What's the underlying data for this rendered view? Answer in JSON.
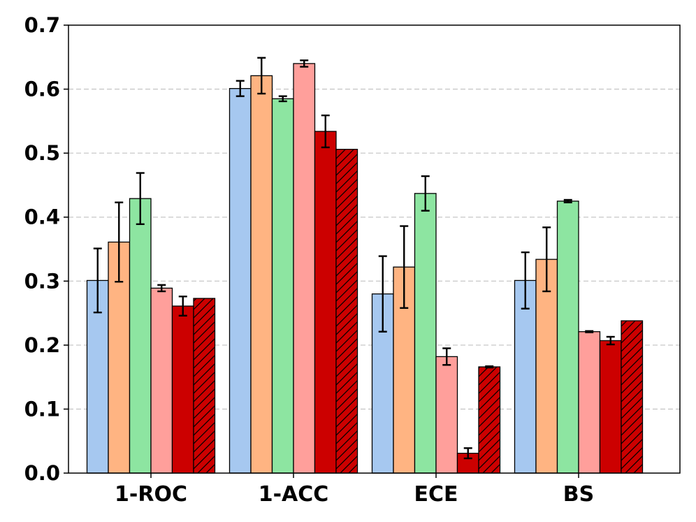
{
  "chart_data": {
    "type": "bar",
    "title": "",
    "xlabel": "",
    "ylabel": "",
    "ylim": [
      0,
      0.7
    ],
    "yticks": [
      "0.0",
      "0.1",
      "0.2",
      "0.3",
      "0.4",
      "0.5",
      "0.6",
      "0.7"
    ],
    "grid": "horizontal dashed",
    "categories": [
      "1-ROC",
      "1-ACC",
      "ECE",
      "BS"
    ],
    "series": [
      {
        "color": "#a6c8f0",
        "hatch": false,
        "values": [
          0.301,
          0.601,
          0.28,
          0.301
        ],
        "errors": [
          0.05,
          0.012,
          0.059,
          0.044
        ]
      },
      {
        "color": "#ffb482",
        "hatch": false,
        "values": [
          0.361,
          0.621,
          0.322,
          0.334
        ],
        "errors": [
          0.062,
          0.028,
          0.064,
          0.05
        ]
      },
      {
        "color": "#8de5a1",
        "hatch": false,
        "values": [
          0.429,
          0.585,
          0.437,
          0.425
        ],
        "errors": [
          0.04,
          0.004,
          0.027,
          0.002
        ]
      },
      {
        "color": "#ff9f9b",
        "hatch": false,
        "values": [
          0.289,
          0.64,
          0.182,
          0.221
        ],
        "errors": [
          0.005,
          0.005,
          0.013,
          0.001
        ]
      },
      {
        "color": "#cc0000",
        "hatch": false,
        "values": [
          0.261,
          0.534,
          0.031,
          0.207
        ],
        "errors": [
          0.015,
          0.025,
          0.008,
          0.006
        ]
      },
      {
        "color": "#cc0000",
        "hatch": true,
        "values": [
          0.273,
          0.506,
          0.166,
          0.238
        ],
        "errors": [
          0.0,
          0.0,
          0.001,
          0.0
        ]
      }
    ]
  }
}
